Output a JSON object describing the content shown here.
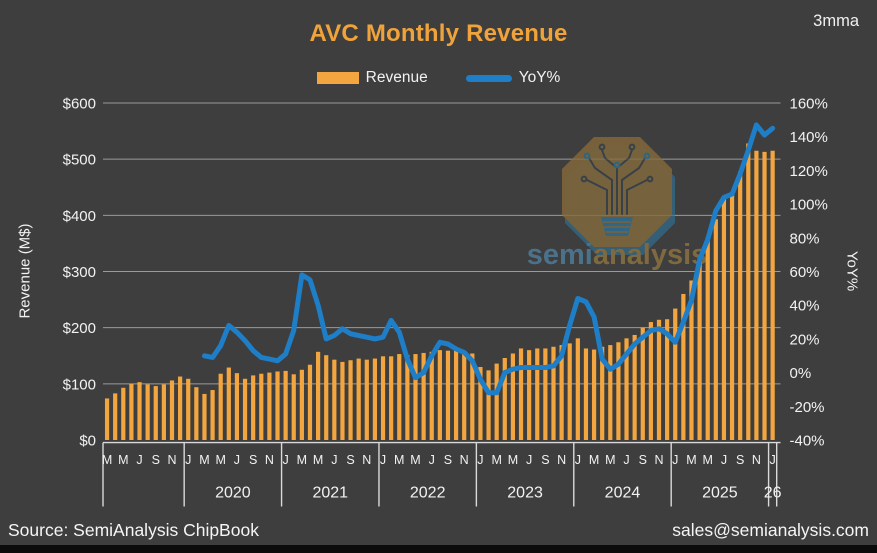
{
  "title": "AVC Monthly Revenue",
  "tag": "3mma",
  "legend": [
    {
      "label": "Revenue",
      "color": "#F3A63F",
      "type": "bar"
    },
    {
      "label": "YoY%",
      "color": "#1E7EC8",
      "type": "line"
    }
  ],
  "watermark": {
    "semi": "semi",
    "analysis": "analysis"
  },
  "footer": {
    "source": "Source: SemiAnalysis ChipBook",
    "contact": "sales@semianalysis.com"
  },
  "colors": {
    "background": "#3E3E3E",
    "title": "#F0A33A",
    "bar": "#F3A63F",
    "line": "#1E7EC8",
    "grid": "#9A9A9A",
    "tick_text": "#F2F2F2",
    "divider": "#DADADA",
    "bottom_strip": "#0B0B0B"
  },
  "chart_data": {
    "type": "combo_bar_line",
    "title": "AVC Monthly Revenue",
    "subtitle": "3mma",
    "start_month": "2019-03",
    "end_month": "2026-01",
    "bar_series": {
      "name": "Revenue",
      "axis": "left",
      "unit": "M$",
      "values": [
        74,
        83,
        93,
        100,
        103,
        99,
        96,
        99,
        106,
        113,
        109,
        94,
        82,
        89,
        118,
        129,
        119,
        109,
        115,
        118,
        120,
        122,
        123,
        117,
        125,
        134,
        157,
        151,
        143,
        139,
        142,
        145,
        143,
        145,
        149,
        149,
        153,
        151,
        153,
        155,
        157,
        160,
        159,
        159,
        157,
        154,
        130,
        124,
        136,
        146,
        154,
        163,
        160,
        163,
        163,
        166,
        169,
        172,
        181,
        163,
        161,
        166,
        169,
        174,
        181,
        187,
        200,
        210,
        214,
        215,
        234,
        260,
        284,
        320,
        361,
        393,
        432,
        437,
        478,
        528,
        515,
        513,
        515
      ]
    },
    "line_series": {
      "name": "YoY%",
      "axis": "right",
      "unit": "%",
      "start_index": 12,
      "values": [
        10,
        9,
        16,
        28,
        24,
        19,
        13,
        9,
        8,
        7,
        11,
        25,
        58,
        55,
        40,
        20,
        22,
        26,
        23,
        22,
        21,
        20,
        21,
        31,
        24,
        8,
        -3,
        0,
        10,
        18,
        17,
        14,
        12,
        7,
        -4,
        -12,
        -12,
        0,
        2,
        3,
        3,
        3,
        3,
        4,
        10,
        28,
        44,
        42,
        33,
        8,
        2,
        5,
        11,
        17,
        21,
        25,
        26,
        23,
        18,
        30,
        43,
        67,
        79,
        96,
        104,
        106,
        118,
        132,
        147,
        141,
        145
      ]
    },
    "left_axis": {
      "title": "Revenue (M$)",
      "min": 0,
      "max": 600,
      "step": 100,
      "tick_labels": [
        "$0",
        "$100",
        "$200",
        "$300",
        "$400",
        "$500",
        "$600"
      ]
    },
    "right_axis": {
      "title": "YoY%",
      "min": -40,
      "max": 160,
      "step": 20,
      "tick_labels": [
        "-40%",
        "-20%",
        "0%",
        "20%",
        "40%",
        "60%",
        "80%",
        "100%",
        "120%",
        "140%",
        "160%"
      ]
    },
    "x_axis": {
      "month_letters": [
        "M",
        "M",
        "J",
        "S",
        "N",
        "J",
        "M",
        "M",
        "J",
        "S",
        "N",
        "J",
        "M",
        "M",
        "J",
        "S",
        "N",
        "J",
        "M",
        "M",
        "J",
        "S",
        "N",
        "J",
        "M",
        "M",
        "J",
        "S",
        "N",
        "J",
        "M",
        "M",
        "J",
        "S",
        "N",
        "J",
        "M",
        "M",
        "J",
        "S",
        "N",
        "J"
      ],
      "year_groups": [
        {
          "label": "",
          "start": 0,
          "end": 9
        },
        {
          "label": "2020",
          "start": 10,
          "end": 21
        },
        {
          "label": "2021",
          "start": 22,
          "end": 33
        },
        {
          "label": "2022",
          "start": 34,
          "end": 45
        },
        {
          "label": "2023",
          "start": 46,
          "end": 57
        },
        {
          "label": "2024",
          "start": 58,
          "end": 69
        },
        {
          "label": "2025",
          "start": 70,
          "end": 81
        },
        {
          "label": "26",
          "start": 82,
          "end": 82
        }
      ]
    },
    "legend_position": "top",
    "grid": true
  }
}
